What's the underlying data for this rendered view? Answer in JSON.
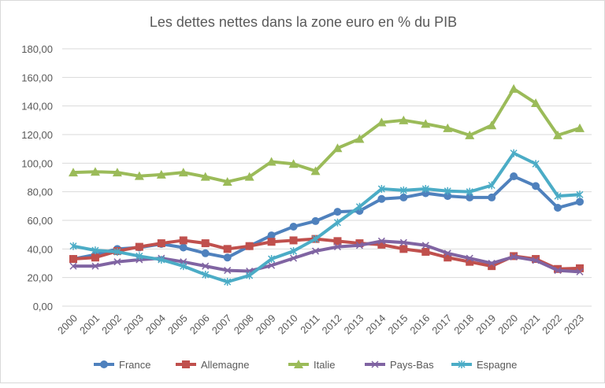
{
  "chart_data": {
    "type": "line",
    "title": "Les dettes nettes dans la zone euro en % du PIB",
    "xlabel": "",
    "ylabel": "",
    "ylim": [
      0,
      180
    ],
    "ytick_step": 20,
    "ytick_labels": [
      "0,00",
      "20,00",
      "40,00",
      "60,00",
      "80,00",
      "100,00",
      "120,00",
      "140,00",
      "160,00",
      "180,00"
    ],
    "grid": true,
    "legend_position": "bottom",
    "categories": [
      "2000",
      "2001",
      "2002",
      "2003",
      "2004",
      "2005",
      "2006",
      "2007",
      "2008",
      "2009",
      "2010",
      "2011",
      "2012",
      "2013",
      "2014",
      "2015",
      "2016",
      "2017",
      "2018",
      "2019",
      "2020",
      "2021",
      "2022",
      "2023"
    ],
    "series": [
      {
        "name": "France",
        "color": "#4f81bd",
        "marker": "circle",
        "values": [
          33,
          36,
          40,
          41,
          43.5,
          41,
          37,
          34,
          42,
          49.5,
          55.6,
          59.5,
          66,
          66.6,
          75,
          76,
          79,
          77,
          76,
          76,
          90.8,
          84,
          68.8,
          73
        ]
      },
      {
        "name": "Allemagne",
        "color": "#c0504d",
        "marker": "square",
        "values": [
          33,
          34,
          38.5,
          41.5,
          44,
          46,
          44,
          40,
          42,
          45,
          46,
          47,
          45.5,
          44,
          43,
          40,
          38,
          34,
          31,
          28,
          35,
          33,
          26,
          26.5
        ]
      },
      {
        "name": "Italie",
        "color": "#9bbb59",
        "marker": "triangle",
        "values": [
          93.5,
          94,
          93.5,
          91,
          92,
          93.5,
          90.5,
          87,
          90.5,
          101,
          99.5,
          94.5,
          110.5,
          117,
          128.5,
          130,
          127.5,
          124.5,
          119.5,
          126.5,
          152,
          142,
          119.5,
          124.5
        ]
      },
      {
        "name": "Pays-Bas",
        "color": "#8064a2",
        "marker": "x",
        "values": [
          28,
          28,
          31,
          32.5,
          33.5,
          31,
          28,
          25,
          24.5,
          28.5,
          33.5,
          38.5,
          41.5,
          42.5,
          45.5,
          44.5,
          42.5,
          37,
          33.5,
          30,
          34.5,
          32,
          25,
          24
        ]
      },
      {
        "name": "Espagne",
        "color": "#4bacc6",
        "marker": "star",
        "values": [
          42,
          39,
          38,
          35,
          32.5,
          28,
          22,
          17,
          21.5,
          33,
          38.5,
          47,
          58.5,
          69.5,
          82,
          81,
          82,
          80.5,
          80,
          84.5,
          107,
          99.5,
          77,
          78
        ]
      }
    ]
  }
}
